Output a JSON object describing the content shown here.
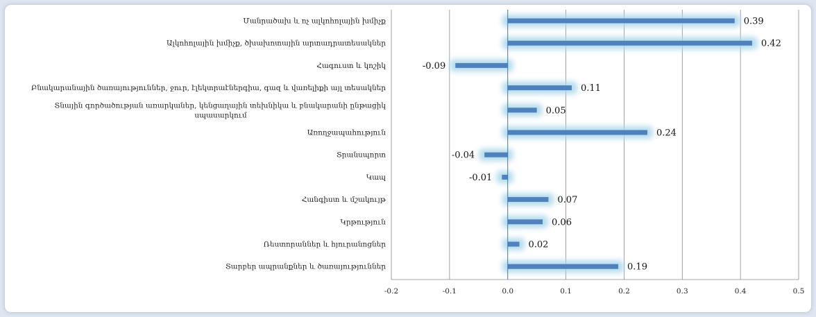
{
  "chart_data": {
    "type": "bar",
    "orientation": "horizontal",
    "title": "",
    "xlabel": "",
    "ylabel": "",
    "xlim": [
      -0.2,
      0.5
    ],
    "x_ticks": [
      "-0.2",
      "-0.1",
      "0.0",
      "0.1",
      "0.2",
      "0.3",
      "0.4",
      "0.5"
    ],
    "gridlines": "vertical",
    "legend": "none",
    "colors": {
      "bar": "#4f81bd",
      "glow": "#a9d6ea",
      "grid": "#8a8a8a"
    },
    "categories": [
      [
        "Մանրածախ և ոչ ալկոհոլային խմիչք"
      ],
      [
        "Ալկոհոլային խմիչք, ծխախոտային արտադրատեսակներ"
      ],
      [
        "Հագուստ և կոշիկ"
      ],
      [
        "Բնակարանային ծառայություններ, ջուր, էլեկտրաէներգիա, գազ և վառելիքի այլ տեսակներ"
      ],
      [
        "Տնային գործածության առարկաներ, կենցաղային տեխնիկա և բնակարանի ընթացիկ",
        "սպասարկում"
      ],
      [
        "Առողջապահություն"
      ],
      [
        "Տրանսպորտ"
      ],
      [
        "Կապ"
      ],
      [
        "Հանգիստ և մշակույթ"
      ],
      [
        "Կրթություն"
      ],
      [
        "Ռեստորաններ և հյուրանոցներ"
      ],
      [
        "Տարբեր ապրանքներ և ծառայություններ"
      ]
    ],
    "values": [
      0.39,
      0.42,
      -0.09,
      0.11,
      0.05,
      0.24,
      -0.04,
      -0.01,
      0.07,
      0.06,
      0.02,
      0.19
    ],
    "value_labels": [
      "0.39",
      "0.42",
      "-0.09",
      "0.11",
      "0.05",
      "0.24",
      "-0.04",
      "-0.01",
      "0.07",
      "0.06",
      "0.02",
      "0.19"
    ]
  }
}
